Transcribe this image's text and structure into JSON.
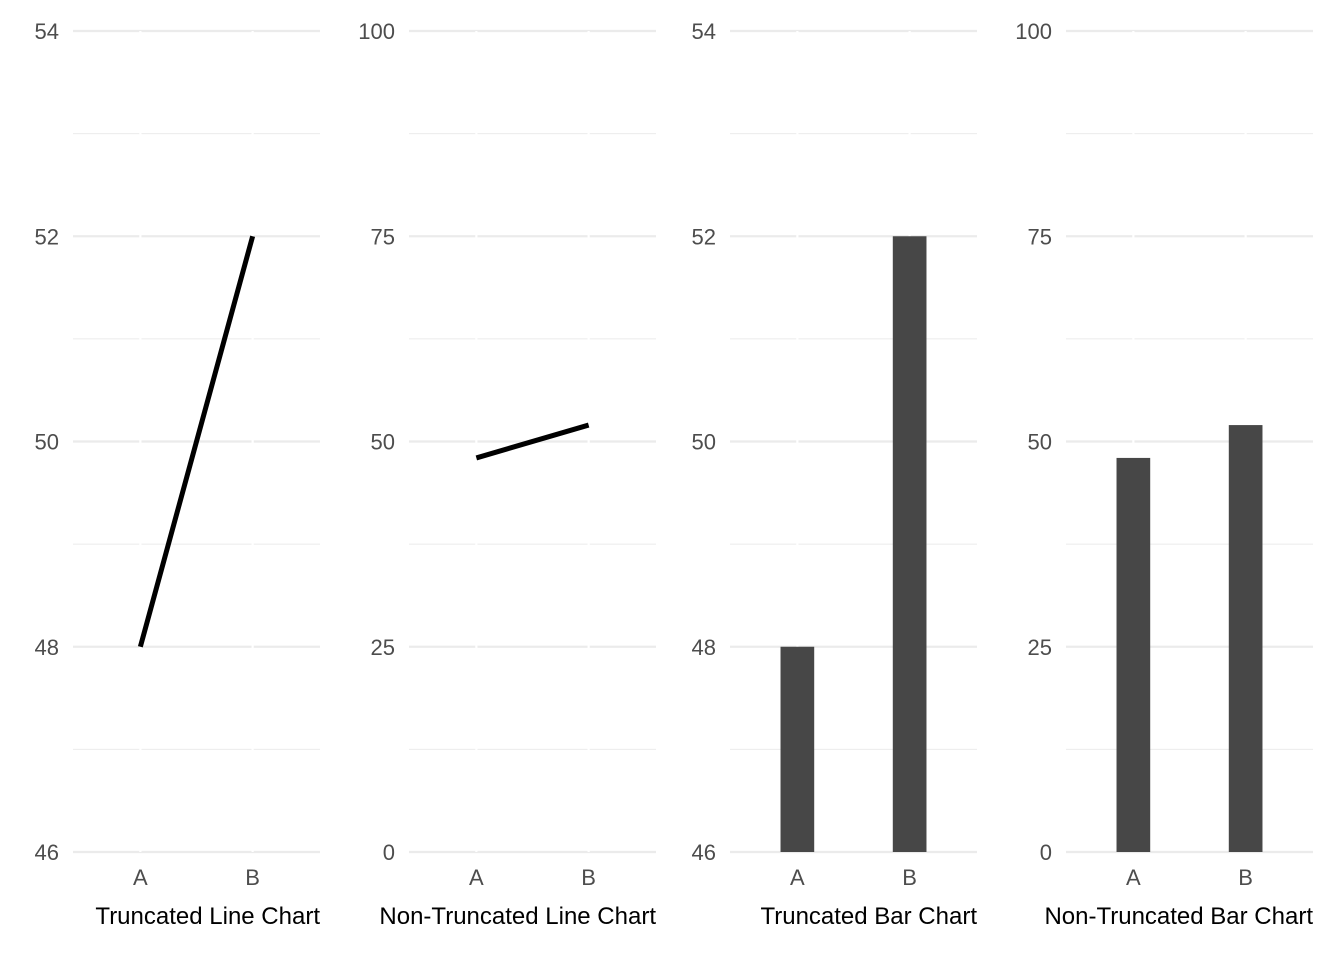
{
  "chart_data": [
    {
      "type": "line",
      "categories": [
        "A",
        "B"
      ],
      "values": [
        48,
        52
      ],
      "xlabel": "Truncated Line Chart",
      "ylabel": "",
      "ylim": [
        46,
        54
      ],
      "yticks": [
        46,
        48,
        50,
        52,
        54
      ],
      "color": "#000000",
      "grid": true
    },
    {
      "type": "line",
      "categories": [
        "A",
        "B"
      ],
      "values": [
        48,
        52
      ],
      "xlabel": "Non-Truncated Line Chart",
      "ylabel": "",
      "ylim": [
        0,
        100
      ],
      "yticks": [
        0,
        25,
        50,
        75,
        100
      ],
      "color": "#000000",
      "grid": true
    },
    {
      "type": "bar",
      "categories": [
        "A",
        "B"
      ],
      "values": [
        48,
        52
      ],
      "xlabel": "Truncated Bar Chart",
      "ylabel": "",
      "ylim": [
        46,
        54
      ],
      "yticks": [
        46,
        48,
        50,
        52,
        54
      ],
      "color": "#474747",
      "grid": true
    },
    {
      "type": "bar",
      "categories": [
        "A",
        "B"
      ],
      "values": [
        48,
        52
      ],
      "xlabel": "Non-Truncated Bar Chart",
      "ylabel": "",
      "ylim": [
        0,
        100
      ],
      "yticks": [
        0,
        25,
        50,
        75,
        100
      ],
      "color": "#474747",
      "grid": true
    }
  ]
}
